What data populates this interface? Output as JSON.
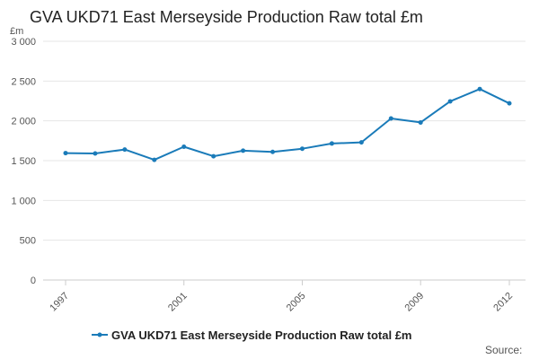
{
  "chart_data": {
    "type": "line",
    "title": "GVA UKD71 East Merseyside Production Raw total £m",
    "ylabel": "£m",
    "xlabel": "",
    "ylim": [
      0,
      3000
    ],
    "xlim": [
      1997,
      2012
    ],
    "y_ticks": [
      {
        "value": 0,
        "label": "0"
      },
      {
        "value": 500,
        "label": "500"
      },
      {
        "value": 1000,
        "label": "1 000"
      },
      {
        "value": 1500,
        "label": "1 500"
      },
      {
        "value": 2000,
        "label": "2 000"
      },
      {
        "value": 2500,
        "label": "2 500"
      },
      {
        "value": 3000,
        "label": "3 000"
      }
    ],
    "x_ticks": [
      {
        "value": 1997,
        "label": "1997"
      },
      {
        "value": 2001,
        "label": "2001"
      },
      {
        "value": 2005,
        "label": "2005"
      },
      {
        "value": 2009,
        "label": "2009"
      },
      {
        "value": 2012,
        "label": "2012"
      }
    ],
    "grid": true,
    "legend_position": "bottom-center",
    "series": [
      {
        "name": "GVA UKD71 East Merseyside Production Raw total £m",
        "color": "#1a7bb9",
        "x": [
          1997,
          1998,
          1999,
          2000,
          2001,
          2002,
          2003,
          2004,
          2005,
          2006,
          2007,
          2008,
          2009,
          2010,
          2011,
          2012
        ],
        "values": [
          1595,
          1590,
          1640,
          1510,
          1675,
          1555,
          1625,
          1610,
          1650,
          1715,
          1730,
          2030,
          1980,
          2245,
          2400,
          2220
        ]
      }
    ]
  },
  "source_label": "Source:"
}
